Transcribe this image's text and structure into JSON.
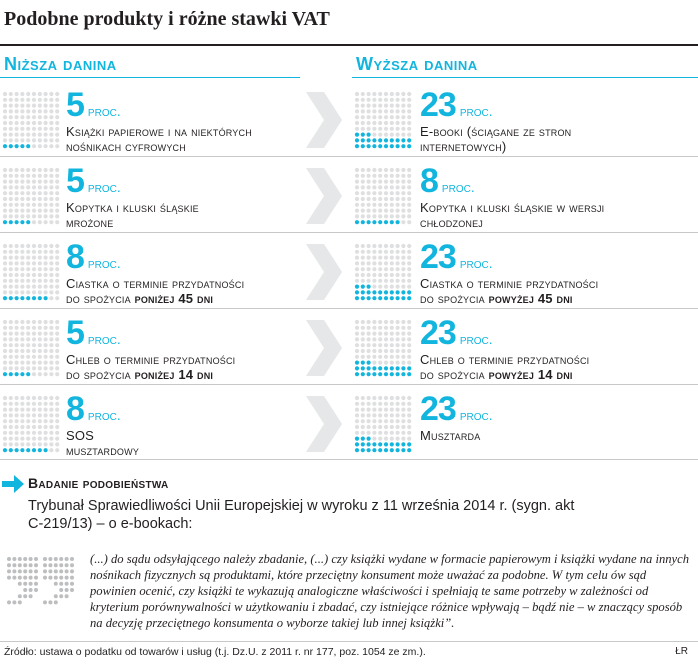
{
  "title": "Podobne produkty i różne stawki VAT",
  "columns": {
    "lower": "Niższa danina",
    "higher": "Wyższa danina"
  },
  "unit": "proc.",
  "colors": {
    "accent": "#12b5dd",
    "dot_empty": "#dedfe0",
    "arrow": "#e6e7e8"
  },
  "icons": {
    "row_arrow": "chevron-right-arrow-icon",
    "section_arrow": "right-arrow-icon",
    "quote": "quote-mark-icon"
  },
  "rows": [
    {
      "left": {
        "rate": "5",
        "line1": "Książki papierowe i na niektórych",
        "line2": "nośnikach cyfrowych",
        "bold": ""
      },
      "right": {
        "rate": "23",
        "line1": "E-booki (ściągane ze stron",
        "line2": "internetowych)",
        "bold": ""
      }
    },
    {
      "left": {
        "rate": "5",
        "line1": "Kopytka i kluski śląskie",
        "line2": "mrożone",
        "bold": ""
      },
      "right": {
        "rate": "8",
        "line1": "Kopytka i kluski śląskie w wersji",
        "line2": "chłodzonej",
        "bold": ""
      }
    },
    {
      "left": {
        "rate": "8",
        "line1": "Ciastka o terminie przydatności",
        "line2": "do spożycia ",
        "bold": "poniżej 45 dni"
      },
      "right": {
        "rate": "23",
        "line1": "Ciastka o terminie przydatności",
        "line2": "do spożycia ",
        "bold": "powyżej 45 dni"
      }
    },
    {
      "left": {
        "rate": "5",
        "line1": "Chleb o terminie przydatności",
        "line2": "do spożycia ",
        "bold": "poniżej 14 dni"
      },
      "right": {
        "rate": "23",
        "line1": "Chleb o terminie przydatności",
        "line2": "do spożycia ",
        "bold": "powyżej 14 dni"
      }
    },
    {
      "left": {
        "rate": "8",
        "line1": "SOS",
        "line2": "musztardowy",
        "bold": ""
      },
      "right": {
        "rate": "23",
        "line1": "Musztarda",
        "line2": "",
        "bold": ""
      }
    }
  ],
  "box": {
    "heading": "Badanie podobieństwa",
    "text": "Trybunał Sprawiedliwości Unii Europejskiej w wyroku z 11 września 2014 r. (sygn. akt C-219/13) – o e-bookach:",
    "quote": "(...) do sądu odsyłającego należy zbadanie, (...) czy książki wydane w formacie papierowym i książki wydane na innych nośnikach fizycznych są produktami, które przeciętny konsument może uważać za podobne. W tym celu ów sąd powinien ocenić, czy książki te wykazują analogiczne właściwości i spełniają te same potrzeby w zależności od kryterium porównywalności w użytkowaniu i zbadać, czy istniejące różnice wpływają – bądź nie – w znaczący sposób na decyzję przeciętnego konsumenta o wyborze takiej lub innej książki”."
  },
  "source": "Źródło: ustawa o podatku od towarów i usług (t.j. Dz.U. z 2011 r. nr 177, poz. 1054 ze zm.).",
  "credit": "ŁR"
}
